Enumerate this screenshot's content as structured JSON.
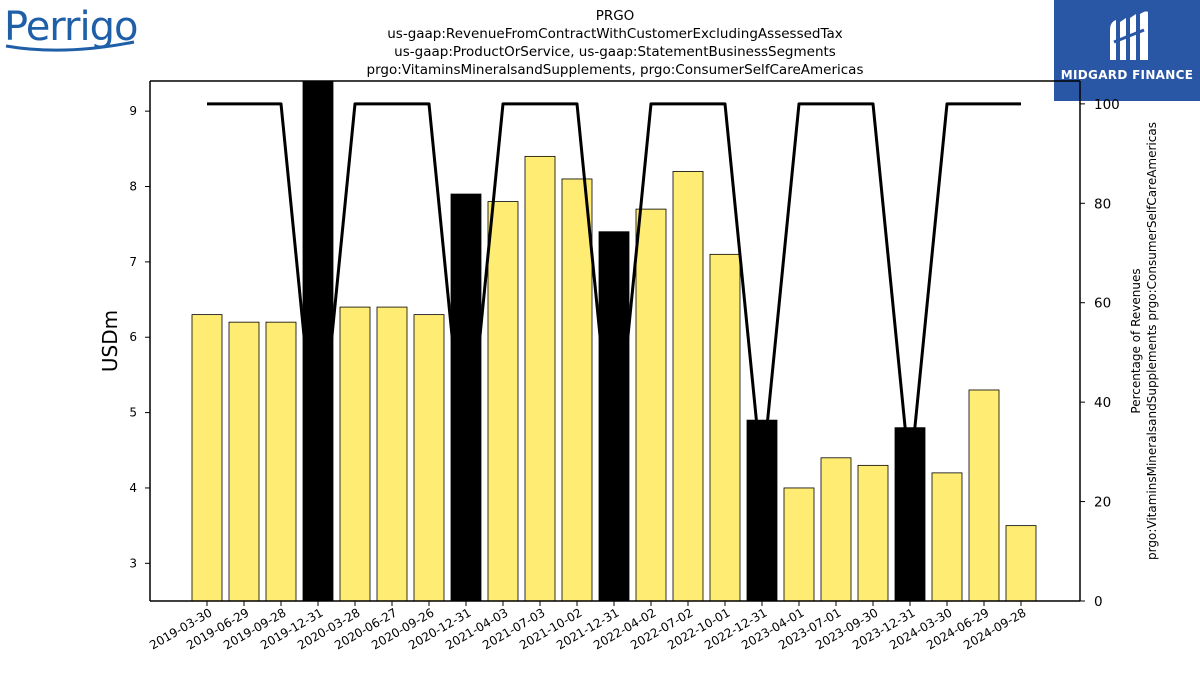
{
  "header": {
    "brand_left": "Perrigo",
    "brand_right": "MIDGARD FINANCE"
  },
  "colors": {
    "bar_default": "#ffec73",
    "bar_highlight": "#000000",
    "line": "#000000",
    "logo_blue": "#1f5fa8",
    "watermark_bg": "#2a56a6"
  },
  "icons": {
    "brand_right_mark": "midgard-finance-logo-icon"
  },
  "chart_data": {
    "type": "bar",
    "title_lines": [
      "PRGO",
      "us-gaap:RevenueFromContractWithCustomerExcludingAssessedTax",
      "us-gaap:ProductOrService, us-gaap:StatementBusinessSegments",
      "prgo:VitaminsMineralsandSupplements, prgo:ConsumerSelfCareAmericas"
    ],
    "ylabel": "USDm",
    "y2label_lines": [
      "Percentage of Revenues",
      "prgo:VitaminsMineralsandSupplements prgo:ConsumerSelfCareAmericas"
    ],
    "categories": [
      "2019-03-30",
      "2019-06-29",
      "2019-09-28",
      "2019-12-31",
      "2020-03-28",
      "2020-06-27",
      "2020-09-26",
      "2020-12-31",
      "2021-04-03",
      "2021-07-03",
      "2021-10-02",
      "2021-12-31",
      "2022-04-02",
      "2022-07-02",
      "2022-10-01",
      "2022-12-31",
      "2023-04-01",
      "2023-07-01",
      "2023-09-30",
      "2023-12-31",
      "2024-03-30",
      "2024-06-29",
      "2024-09-28"
    ],
    "series": [
      {
        "type": "bar",
        "axis": "left",
        "values": [
          6.3,
          6.2,
          6.2,
          9.4,
          6.4,
          6.4,
          6.3,
          7.9,
          7.8,
          8.4,
          8.1,
          7.4,
          7.7,
          8.2,
          7.1,
          4.9,
          4.0,
          4.4,
          4.3,
          4.8,
          4.2,
          5.3,
          3.5
        ],
        "highlight": [
          false,
          false,
          false,
          true,
          false,
          false,
          false,
          true,
          false,
          false,
          false,
          true,
          false,
          false,
          false,
          true,
          false,
          false,
          false,
          true,
          false,
          false,
          false
        ]
      },
      {
        "type": "line",
        "axis": "right",
        "values": [
          100,
          100,
          100,
          25,
          100,
          100,
          100,
          25,
          100,
          100,
          100,
          25,
          100,
          100,
          100,
          25,
          100,
          100,
          100,
          25,
          100,
          100,
          100
        ]
      }
    ],
    "ylim": [
      2.5,
      9.4
    ],
    "yticks": [
      3,
      4,
      5,
      6,
      7,
      8,
      9
    ],
    "y2lim": [
      0,
      104.6
    ],
    "y2ticks": [
      0,
      20,
      40,
      60,
      80,
      100
    ],
    "grid": false,
    "legend": "none"
  }
}
